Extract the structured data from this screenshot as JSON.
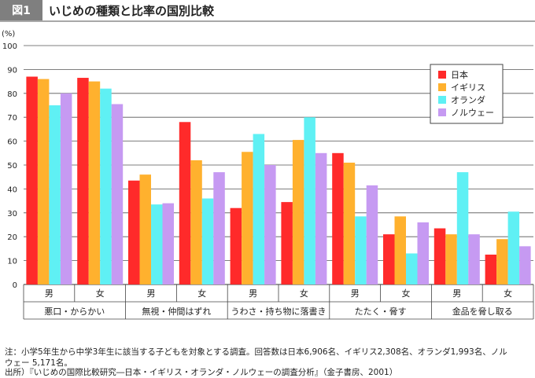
{
  "header": {
    "badge": "図1",
    "title": "いじめの種類と比率の国別比較",
    "badge_color": "#7f7f7f",
    "rule_color": "#8c8c8c"
  },
  "chart_data": {
    "type": "bar",
    "y_unit_label": "(%)",
    "ylim": [
      0,
      100
    ],
    "yticks": [
      0,
      10,
      20,
      30,
      40,
      50,
      60,
      70,
      80,
      90,
      100
    ],
    "grid": true,
    "legend_position": "top-right",
    "groups": [
      {
        "label": "悪口・からかい",
        "sub": [
          "男",
          "女"
        ]
      },
      {
        "label": "無視・仲間はずれ",
        "sub": [
          "男",
          "女"
        ]
      },
      {
        "label": "うわさ・持ち物に落書き",
        "sub": [
          "男",
          "女"
        ]
      },
      {
        "label": "たたく・脅す",
        "sub": [
          "男",
          "女"
        ]
      },
      {
        "label": "金品を脅し取る",
        "sub": [
          "男",
          "女"
        ]
      }
    ],
    "series": [
      {
        "name": "日本",
        "color": "#ff2a2a",
        "values": [
          87,
          86.5,
          43.5,
          68,
          32,
          34.5,
          55,
          21,
          23.5,
          12.5
        ]
      },
      {
        "name": "イギリス",
        "color": "#ffb12e",
        "values": [
          86,
          85,
          46,
          52,
          55.5,
          60.5,
          51,
          28.5,
          21,
          19
        ]
      },
      {
        "name": "オランダ",
        "color": "#5ff0f4",
        "values": [
          75,
          82,
          33.5,
          36,
          63,
          70,
          28.5,
          13,
          47,
          30.5
        ]
      },
      {
        "name": "ノルウェー",
        "color": "#c69af2",
        "values": [
          80,
          75.5,
          34,
          47,
          50,
          55,
          41.5,
          26,
          21,
          16
        ]
      }
    ]
  },
  "notes": {
    "line1": "注：小学5年生から中学3年生に該当する子どもを対象とする調査。回答数は日本6,906名、イギリス2,308名、オランダ1,993名、ノル",
    "line2": "ウェー 5,171名。",
    "line3": "出所）『いじめの国際比較研究―日本・イギリス・オランダ・ノルウェーの調査分析』（金子書房、2001）"
  }
}
